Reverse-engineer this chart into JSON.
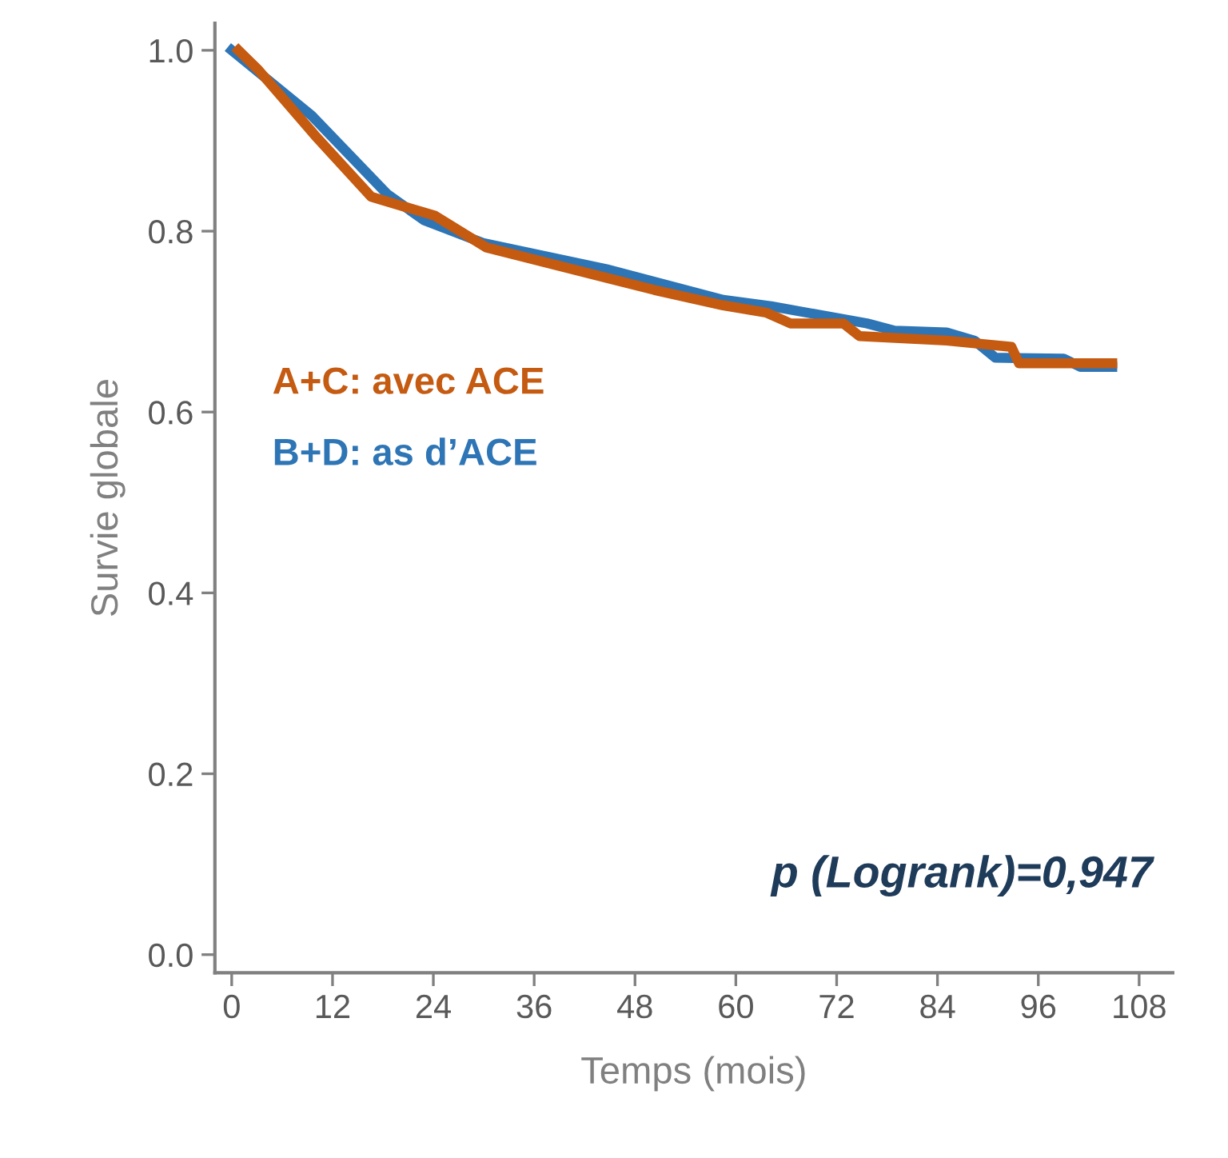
{
  "chart_data": {
    "type": "line",
    "xlabel": "Temps (mois)",
    "ylabel": "Survie globale",
    "xlim": [
      -2,
      112
    ],
    "ylim": [
      -0.02,
      1.03
    ],
    "xticks": [
      0,
      12,
      24,
      36,
      48,
      60,
      72,
      84,
      96,
      108
    ],
    "yticks": [
      {
        "value": 0,
        "label": "0.0"
      },
      {
        "value": 0.2,
        "label": "0.2"
      },
      {
        "value": 0.4,
        "label": "0.4"
      },
      {
        "value": 0.6,
        "label": "0.6"
      },
      {
        "value": 0.8,
        "label": "0.8"
      },
      {
        "value": 1,
        "label": "1.0"
      }
    ],
    "grid": false,
    "legend": false,
    "marker": "none",
    "line_style": "solid",
    "series": [
      {
        "name": "B+D: as d’ACE",
        "color": "#2e75b6",
        "x": [
          0,
          9.5,
          18.5,
          22.9,
          29.9,
          44.6,
          58.5,
          64.2,
          75.6,
          78.9,
          85.1,
          88.4,
          90.9,
          99,
          101,
          104.8
        ],
        "values": [
          1.0,
          0.928,
          0.841,
          0.812,
          0.787,
          0.758,
          0.724,
          0.717,
          0.698,
          0.69,
          0.688,
          0.679,
          0.66,
          0.659,
          0.65,
          0.65
        ]
      },
      {
        "name": "A+C: avec ACE",
        "color": "#c55a11",
        "x": [
          0.8,
          3.2,
          9.9,
          16.6,
          24.2,
          30.3,
          50.3,
          58.5,
          63.6,
          66.5,
          72.8,
          74.7,
          85.1,
          92.8,
          93.7,
          104.8
        ],
        "values": [
          1.0,
          0.978,
          0.906,
          0.838,
          0.817,
          0.782,
          0.735,
          0.718,
          0.71,
          0.698,
          0.698,
          0.684,
          0.679,
          0.672,
          0.654,
          0.654
        ]
      }
    ],
    "annotations": [
      "p (Logrank)=0,947"
    ]
  }
}
